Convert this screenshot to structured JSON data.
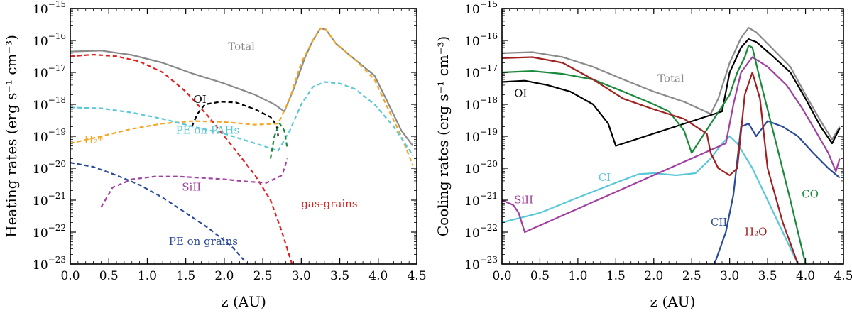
{
  "chart_data": [
    {
      "type": "line",
      "xlabel": "z (AU)",
      "ylabel": "Heating rates (erg s⁻¹ cm⁻³)",
      "xlim": [
        0,
        4.5
      ],
      "ylim": [
        1e-23,
        1e-15
      ],
      "yscale": "log",
      "grid": false,
      "x_ticks": [
        "0.0",
        "0.5",
        "1.0",
        "1.5",
        "2.0",
        "2.5",
        "3.0",
        "3.5",
        "4.0",
        "4.5"
      ],
      "series": [
        {
          "name": "Total",
          "color": "#8a8a8a",
          "dash": "solid",
          "label_at": [
            2.05,
            5e-17
          ],
          "points": [
            [
              0,
              4.5e-17
            ],
            [
              0.4,
              4.8e-17
            ],
            [
              0.8,
              3.5e-17
            ],
            [
              1.2,
              2e-17
            ],
            [
              1.6,
              9e-18
            ],
            [
              2.0,
              4.5e-18
            ],
            [
              2.4,
              2e-18
            ],
            [
              2.65,
              1e-18
            ],
            [
              2.78,
              6e-19
            ],
            [
              2.9,
              3e-18
            ],
            [
              3.05,
              3e-17
            ],
            [
              3.15,
              1e-16
            ],
            [
              3.25,
              2.4e-16
            ],
            [
              3.32,
              2.2e-16
            ],
            [
              3.45,
              8e-17
            ],
            [
              3.7,
              2.5e-17
            ],
            [
              3.95,
              8e-18
            ],
            [
              4.1,
              1.5e-18
            ],
            [
              4.3,
              1.5e-19
            ],
            [
              4.45,
              5e-20
            ]
          ]
        },
        {
          "name": "OI",
          "color": "#000000",
          "dash": "dashed",
          "label_at": [
            1.6,
            1.1e-18
          ],
          "points": [
            [
              1.58,
              2e-19
            ],
            [
              1.65,
              5e-19
            ],
            [
              1.75,
              1e-18
            ],
            [
              1.95,
              1.2e-18
            ],
            [
              2.15,
              1.15e-18
            ],
            [
              2.4,
              7e-19
            ],
            [
              2.6,
              4e-19
            ],
            [
              2.68,
              2.2e-19
            ],
            [
              2.7,
              1e-19
            ]
          ]
        },
        {
          "name": "H₂*",
          "color": "#f5a623",
          "dash": "dashed",
          "label_at": [
            0.18,
            6e-20
          ],
          "points": [
            [
              0,
              6e-20
            ],
            [
              0.4,
              1e-19
            ],
            [
              0.8,
              1.7e-19
            ],
            [
              1.2,
              2.5e-19
            ],
            [
              1.6,
              3e-19
            ],
            [
              2.0,
              2.8e-19
            ],
            [
              2.4,
              2.3e-19
            ],
            [
              2.7,
              2.5e-19
            ],
            [
              2.85,
              1.5e-18
            ],
            [
              3.0,
              2e-17
            ],
            [
              3.15,
              1e-16
            ],
            [
              3.25,
              2.4e-16
            ],
            [
              3.32,
              2.2e-16
            ],
            [
              3.45,
              8e-17
            ],
            [
              3.7,
              2.5e-17
            ],
            [
              3.95,
              6e-18
            ],
            [
              4.1,
              1e-18
            ],
            [
              4.3,
              1e-19
            ],
            [
              4.45,
              1.2e-20
            ]
          ]
        },
        {
          "name": "PE on PAHs",
          "color": "#5ac8d8",
          "dash": "dashed",
          "label_at": [
            1.37,
            1.2e-19
          ],
          "points": [
            [
              0,
              8e-19
            ],
            [
              0.4,
              7.5e-19
            ],
            [
              0.8,
              5.5e-19
            ],
            [
              1.2,
              3.5e-19
            ],
            [
              1.6,
              2e-19
            ],
            [
              2.0,
              1.2e-19
            ],
            [
              2.4,
              6e-20
            ],
            [
              2.7,
              3.5e-20
            ],
            [
              2.85,
              1.5e-19
            ],
            [
              3.0,
              1e-18
            ],
            [
              3.15,
              3.5e-18
            ],
            [
              3.3,
              5e-18
            ],
            [
              3.5,
              4.5e-18
            ],
            [
              3.7,
              3e-18
            ],
            [
              3.95,
              1e-18
            ],
            [
              4.2,
              2e-19
            ],
            [
              4.45,
              2.5e-20
            ]
          ]
        },
        {
          "name": "gas-grains",
          "color": "#e02020",
          "dash": "dashed",
          "label_at": [
            3.0,
            6e-22
          ],
          "points": [
            [
              0,
              3.2e-17
            ],
            [
              0.3,
              3.6e-17
            ],
            [
              0.6,
              3.2e-17
            ],
            [
              0.9,
              2.2e-17
            ],
            [
              1.2,
              1e-17
            ],
            [
              1.5,
              2.5e-18
            ],
            [
              1.8,
              4e-19
            ],
            [
              2.1,
              5e-20
            ],
            [
              2.4,
              6e-21
            ],
            [
              2.6,
              1e-21
            ],
            [
              2.75,
              1e-22
            ],
            [
              2.88,
              1e-23
            ]
          ]
        },
        {
          "name": "SiII",
          "color": "#a040a0",
          "dash": "dashed",
          "label_at": [
            1.45,
            2e-21
          ],
          "points": [
            [
              0.4,
              6e-22
            ],
            [
              0.55,
              2.5e-21
            ],
            [
              0.8,
              4.5e-21
            ],
            [
              1.1,
              5.5e-21
            ],
            [
              1.4,
              5.5e-21
            ],
            [
              1.7,
              5e-21
            ],
            [
              2.0,
              4.5e-21
            ],
            [
              2.3,
              3.8e-21
            ],
            [
              2.55,
              3.5e-21
            ],
            [
              2.75,
              6e-21
            ],
            [
              2.82,
              2e-20
            ]
          ]
        },
        {
          "name": "PE on grains",
          "color": "#2a4a9a",
          "dash": "dashed",
          "label_at": [
            1.28,
            4e-23
          ],
          "points": [
            [
              0,
              1.5e-20
            ],
            [
              0.3,
              1.1e-20
            ],
            [
              0.6,
              6e-21
            ],
            [
              0.9,
              3e-21
            ],
            [
              1.2,
              1.2e-21
            ],
            [
              1.5,
              4e-22
            ],
            [
              1.8,
              1.3e-22
            ],
            [
              2.1,
              3.5e-23
            ],
            [
              2.3,
              1e-23
            ]
          ]
        },
        {
          "name": "",
          "color": "#1a8a3a",
          "dash": "dashed",
          "label_at": null,
          "points": [
            [
              2.6,
              2e-20
            ],
            [
              2.65,
              1e-19
            ],
            [
              2.72,
              2.5e-19
            ],
            [
              2.78,
              1.5e-19
            ],
            [
              2.82,
              4e-20
            ]
          ]
        }
      ]
    },
    {
      "type": "line",
      "xlabel": "z (AU)",
      "ylabel": "Cooling rates (erg s⁻¹ cm⁻³)",
      "xlim": [
        0,
        4.5
      ],
      "ylim": [
        1e-23,
        1e-15
      ],
      "yscale": "log",
      "grid": false,
      "x_ticks": [
        "0.0",
        "0.5",
        "1.0",
        "1.5",
        "2.0",
        "2.5",
        "3.0",
        "3.5",
        "4.0",
        "4.5"
      ],
      "series": [
        {
          "name": "Total",
          "color": "#8a8a8a",
          "dash": "solid",
          "label_at": [
            2.05,
            5e-18
          ],
          "points": [
            [
              0,
              4e-17
            ],
            [
              0.4,
              4.3e-17
            ],
            [
              0.8,
              3e-17
            ],
            [
              1.2,
              1.5e-17
            ],
            [
              1.6,
              6e-18
            ],
            [
              2.0,
              2.5e-18
            ],
            [
              2.4,
              1.2e-18
            ],
            [
              2.75,
              5e-19
            ],
            [
              2.85,
              1.5e-18
            ],
            [
              3.0,
              2e-17
            ],
            [
              3.15,
              1.2e-16
            ],
            [
              3.25,
              2.5e-16
            ],
            [
              3.35,
              1.8e-16
            ],
            [
              3.55,
              6e-17
            ],
            [
              3.8,
              1.5e-17
            ],
            [
              4.0,
              2e-18
            ],
            [
              4.2,
              3e-19
            ],
            [
              4.35,
              8e-20
            ],
            [
              4.45,
              2e-19
            ]
          ]
        },
        {
          "name": "OI",
          "color": "#000000",
          "dash": "solid",
          "label_at": [
            0.16,
            1.7e-18
          ],
          "points": [
            [
              0,
              5e-18
            ],
            [
              0.3,
              5.5e-18
            ],
            [
              0.6,
              4e-18
            ],
            [
              0.9,
              2.5e-18
            ],
            [
              1.2,
              1e-18
            ],
            [
              1.4,
              2.5e-19
            ],
            [
              1.5,
              5e-20
            ],
            [
              2.9,
              6e-19
            ],
            [
              3.0,
              1e-17
            ],
            [
              3.15,
              6e-17
            ],
            [
              3.25,
              1.1e-16
            ],
            [
              3.35,
              9e-17
            ],
            [
              3.55,
              3.5e-17
            ],
            [
              3.8,
              1e-17
            ],
            [
              4.0,
              1.5e-18
            ],
            [
              4.2,
              2e-19
            ],
            [
              4.35,
              6e-20
            ],
            [
              4.45,
              1.8e-19
            ]
          ]
        },
        {
          "name": "CI",
          "color": "#5ac8d8",
          "dash": "solid",
          "label_at": [
            1.27,
            4e-21
          ],
          "points": [
            [
              0,
              2e-22
            ],
            [
              0.5,
              4e-22
            ],
            [
              1.0,
              1.2e-21
            ],
            [
              1.5,
              3.5e-21
            ],
            [
              1.8,
              6.5e-21
            ],
            [
              2.0,
              7e-21
            ],
            [
              2.3,
              6e-21
            ],
            [
              2.55,
              7e-21
            ],
            [
              2.75,
              2e-20
            ],
            [
              2.9,
              6e-20
            ],
            [
              3.0,
              1e-19
            ],
            [
              3.1,
              6e-20
            ],
            [
              3.3,
              1e-20
            ],
            [
              3.5,
              1e-21
            ],
            [
              3.7,
              1e-22
            ],
            [
              3.9,
              1e-23
            ]
          ]
        },
        {
          "name": "SiII",
          "color": "#a040a0",
          "dash": "solid",
          "label_at": [
            0.16,
            8e-22
          ],
          "points": [
            [
              0,
              1e-21
            ],
            [
              0.15,
              7e-22
            ],
            [
              0.22,
              4e-22
            ],
            [
              0.3,
              1e-22
            ],
            [
              2.95,
              6e-20
            ],
            [
              3.05,
              1e-18
            ],
            [
              3.15,
              1e-17
            ],
            [
              3.3,
              3e-17
            ],
            [
              3.5,
              1.5e-17
            ],
            [
              3.75,
              4e-18
            ],
            [
              3.95,
              8e-19
            ],
            [
              4.1,
              2e-19
            ],
            [
              4.3,
              3e-20
            ],
            [
              4.4,
              8e-21
            ],
            [
              4.45,
              2e-20
            ]
          ]
        },
        {
          "name": "CII",
          "color": "#2a4a9a",
          "dash": "solid",
          "label_at": [
            2.75,
            1.6e-22
          ],
          "points": [
            [
              2.8,
              1e-23
            ],
            [
              2.95,
              1e-22
            ],
            [
              3.05,
              1.5e-21
            ],
            [
              3.15,
              2e-19
            ],
            [
              3.25,
              2.5e-19
            ],
            [
              3.35,
              1e-19
            ],
            [
              3.5,
              3e-19
            ],
            [
              3.7,
              2e-19
            ],
            [
              3.9,
              1e-19
            ],
            [
              4.1,
              3e-20
            ],
            [
              4.3,
              1e-20
            ],
            [
              4.45,
              5e-21
            ]
          ]
        },
        {
          "name": "CO",
          "color": "#1a8a3a",
          "dash": "solid",
          "label_at": [
            3.95,
            1.2e-21
          ],
          "points": [
            [
              0,
              1e-17
            ],
            [
              0.4,
              1.1e-17
            ],
            [
              0.8,
              9e-18
            ],
            [
              1.2,
              6e-18
            ],
            [
              1.6,
              2.5e-18
            ],
            [
              2.0,
              1e-18
            ],
            [
              2.2,
              6e-19
            ],
            [
              2.4,
              1.5e-19
            ],
            [
              2.5,
              3e-20
            ],
            [
              3.0,
              2e-18
            ],
            [
              3.1,
              1e-17
            ],
            [
              3.2,
              3e-17
            ],
            [
              3.25,
              7e-17
            ],
            [
              3.3,
              6e-17
            ],
            [
              3.4,
              6e-18
            ],
            [
              3.6,
              8e-20
            ],
            [
              3.8,
              1e-21
            ],
            [
              4.0,
              1e-23
            ]
          ]
        },
        {
          "name": "H₂O",
          "color": "#a02020",
          "dash": "solid",
          "label_at": [
            3.2,
            8e-23
          ],
          "points": [
            [
              0,
              2.8e-17
            ],
            [
              0.4,
              3e-17
            ],
            [
              0.8,
              2e-17
            ],
            [
              1.2,
              6e-18
            ],
            [
              1.6,
              1.5e-18
            ],
            [
              2.0,
              7e-19
            ],
            [
              2.4,
              3.5e-19
            ],
            [
              2.7,
              1.2e-19
            ],
            [
              2.75,
              3e-20
            ],
            [
              2.85,
              1e-20
            ],
            [
              3.0,
              6e-21
            ],
            [
              3.1,
              1e-20
            ],
            [
              3.2,
              2e-18
            ],
            [
              3.3,
              1e-17
            ],
            [
              3.4,
              1.5e-18
            ],
            [
              3.5,
              1e-20
            ],
            [
              3.7,
              2e-22
            ],
            [
              3.9,
              1e-23
            ]
          ]
        }
      ]
    }
  ]
}
